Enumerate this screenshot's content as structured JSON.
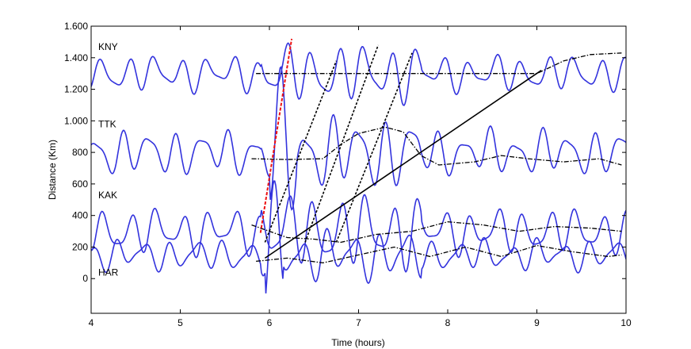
{
  "chart_data": {
    "type": "line",
    "title": "",
    "xlabel": "Time (hours)",
    "ylabel": "Distance (Km)",
    "xlim": [
      4,
      10
    ],
    "ylim": [
      -220,
      1600
    ],
    "x_ticks": [
      4,
      5,
      6,
      7,
      8,
      9,
      10
    ],
    "x_tick_labels": [
      "4",
      "5",
      "6",
      "7",
      "8",
      "9",
      "10"
    ],
    "y_ticks": [
      0,
      200,
      400,
      600,
      800,
      1000,
      1200,
      1400,
      1600
    ],
    "y_tick_labels": [
      "0",
      "200",
      "400",
      "600",
      "800",
      "1.000",
      "1.200",
      "1.400",
      "1.600"
    ],
    "grid": false,
    "legend": "none",
    "colors": {
      "waveform": "#3333dd",
      "tec_track": "#000000",
      "fit_line": "#000000",
      "red_line": "#ee1111"
    },
    "station_labels": [
      {
        "name": "KNY",
        "x": 4.08,
        "y": 1450
      },
      {
        "name": "TTK",
        "x": 4.08,
        "y": 960
      },
      {
        "name": "KAK",
        "x": 4.08,
        "y": 510
      },
      {
        "name": "HAR",
        "x": 4.08,
        "y": 20
      }
    ],
    "waveforms": [
      {
        "station": "KNY",
        "baseline": 1300,
        "amplitude": 80,
        "seed": 1.3
      },
      {
        "station": "TTK",
        "baseline": 800,
        "amplitude": 100,
        "seed": 2.7
      },
      {
        "station": "KAK",
        "baseline": 300,
        "amplitude": 100,
        "seed": 0.9
      },
      {
        "station": "HAR",
        "baseline": 150,
        "amplitude": 70,
        "seed": 3.9
      }
    ],
    "dashdot_tracks": [
      {
        "points": [
          [
            5.85,
            1300
          ],
          [
            9.0,
            1300
          ],
          [
            9.3,
            1380
          ],
          [
            9.6,
            1420
          ],
          [
            9.95,
            1430
          ]
        ]
      },
      {
        "points": [
          [
            5.8,
            760
          ],
          [
            6.2,
            755
          ],
          [
            6.6,
            760
          ],
          [
            6.8,
            850
          ],
          [
            7.0,
            920
          ],
          [
            7.3,
            960
          ],
          [
            7.5,
            930
          ],
          [
            7.7,
            780
          ],
          [
            7.9,
            720
          ],
          [
            8.3,
            740
          ],
          [
            8.6,
            780
          ],
          [
            8.9,
            760
          ],
          [
            9.3,
            740
          ],
          [
            9.7,
            760
          ],
          [
            9.95,
            720
          ]
        ]
      },
      {
        "points": [
          [
            5.8,
            340
          ],
          [
            6.0,
            300
          ],
          [
            6.2,
            260
          ],
          [
            6.5,
            250
          ],
          [
            6.8,
            230
          ],
          [
            7.2,
            280
          ],
          [
            7.6,
            300
          ],
          [
            8.0,
            360
          ],
          [
            8.4,
            340
          ],
          [
            8.8,
            300
          ],
          [
            9.2,
            330
          ],
          [
            9.6,
            320
          ],
          [
            9.95,
            300
          ]
        ]
      },
      {
        "points": [
          [
            5.85,
            110
          ],
          [
            6.2,
            130
          ],
          [
            6.6,
            100
          ],
          [
            7.0,
            150
          ],
          [
            7.4,
            200
          ],
          [
            7.8,
            140
          ],
          [
            8.2,
            200
          ],
          [
            8.6,
            140
          ],
          [
            9.0,
            210
          ],
          [
            9.4,
            170
          ],
          [
            9.8,
            140
          ],
          [
            9.95,
            150
          ]
        ]
      }
    ],
    "dotted_lines": [
      {
        "x": [
          5.95,
          6.75
        ],
        "y": [
          230,
          1380
        ]
      },
      {
        "x": [
          6.4,
          7.22
        ],
        "y": [
          230,
          1480
        ]
      },
      {
        "x": [
          6.75,
          7.6
        ],
        "y": [
          230,
          1430
        ]
      }
    ],
    "red_dashed_line": {
      "x": [
        5.9,
        6.25
      ],
      "y": [
        290,
        1520
      ]
    },
    "solid_fit_line": {
      "x": [
        5.95,
        9.05
      ],
      "y": [
        130,
        1320
      ]
    }
  }
}
